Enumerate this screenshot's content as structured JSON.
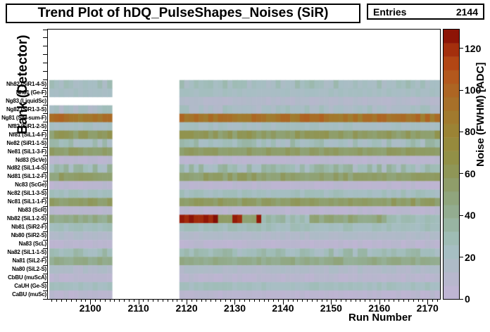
{
  "title_box": {
    "text": "Trend Plot of hDQ_PulseShapes_Noises (SiR)"
  },
  "stats_box": {
    "label": "Entries",
    "value": "2144"
  },
  "chart_data": {
    "type": "heatmap",
    "title": "Trend Plot of hDQ_PulseShapes_Noises (SiR)",
    "entries": 2144,
    "xlabel": "Run Number",
    "ylabel": "Bank (Detector)",
    "zlabel": "Noise (FWHM) [ADC]",
    "x_axis": {
      "min": 2091.2,
      "max": 2172.6,
      "major_ticks": [
        2100,
        2110,
        2120,
        2130,
        2140,
        2150,
        2160,
        2170
      ],
      "minor_step": 1
    },
    "z_axis": {
      "min": 0,
      "max": 129,
      "ticks": [
        0,
        20,
        40,
        60,
        80,
        100,
        120
      ]
    },
    "run_segments": [
      [
        2092,
        2104
      ],
      [
        2119,
        2172
      ]
    ],
    "empty_top_rows": 6,
    "rows_top_to_bottom": [
      {
        "label": "Nh82 (SiR1-4-S)",
        "bank": "Nh82",
        "detector": "SiR1-4-S",
        "noise_adc": 24,
        "jitter": 8
      },
      {
        "label": "Nh81 (Ge-F)",
        "bank": "Nh81",
        "detector": "Ge-F",
        "noise_adc": 22,
        "jitter": 3
      },
      {
        "label": "Ng83 (LiquidSc)",
        "bank": "Ng83",
        "detector": "LiquidSc",
        "noise_adc": 12,
        "jitter": 3,
        "first_data_run": 2119
      },
      {
        "label": "Ng82 (SiR1-3-S)",
        "bank": "Ng82",
        "detector": "SiR1-3-S",
        "noise_adc": 20,
        "jitter": 8
      },
      {
        "label": "Ng81 (SiR-sum-F)",
        "bank": "Ng81",
        "detector": "SiR-sum-F",
        "noise_adc": 93,
        "jitter": 9
      },
      {
        "label": "Nf82 (SiR1-2-S)",
        "bank": "Nf82",
        "detector": "SiR1-2-S",
        "noise_adc": 22,
        "jitter": 4
      },
      {
        "label": "Nf81 (SiL1-4-F)",
        "bank": "Nf81",
        "detector": "SiL1-4-F",
        "noise_adc": 58,
        "jitter": 8
      },
      {
        "label": "Ne82 (SiR1-1-S)",
        "bank": "Ne82",
        "detector": "SiR1-1-S",
        "noise_adc": 26,
        "jitter": 10
      },
      {
        "label": "Ne81 (SiL1-3-F)",
        "bank": "Ne81",
        "detector": "SiL1-3-F",
        "noise_adc": 55,
        "jitter": 5
      },
      {
        "label": "Nd83 (ScVe)",
        "bank": "Nd83",
        "detector": "ScVe",
        "noise_adc": 7,
        "jitter": 3
      },
      {
        "label": "Nd82 (SiL1-4-S)",
        "bank": "Nd82",
        "detector": "SiL1-4-S",
        "noise_adc": 28,
        "jitter": 13
      },
      {
        "label": "Nd81 (SiL1-2-F)",
        "bank": "Nd81",
        "detector": "SiL1-2-F",
        "noise_adc": 54,
        "jitter": 7
      },
      {
        "label": "Nc83 (ScGe)",
        "bank": "Nc83",
        "detector": "ScGe",
        "noise_adc": 7,
        "jitter": 3
      },
      {
        "label": "Nc82 (SiL1-3-S)",
        "bank": "Nc82",
        "detector": "SiL1-3-S",
        "noise_adc": 25,
        "jitter": 5
      },
      {
        "label": "Nc81 (SiL1-1-F)",
        "bank": "Nc81",
        "detector": "SiL1-1-F",
        "noise_adc": 56,
        "jitter": 6
      },
      {
        "label": "Nb83 (ScR)",
        "bank": "Nb83",
        "detector": "ScR",
        "noise_adc": 7,
        "jitter": 3
      },
      {
        "label": "Nb82 (SiL1-2-S)",
        "bank": "Nb82",
        "detector": "SiL1-2-S",
        "profile": [
          {
            "from": 2092,
            "to": 2104,
            "value": 44,
            "jitter": 5
          },
          {
            "from": 2119,
            "to": 2126,
            "value": 124,
            "jitter": 4
          },
          {
            "from": 2127,
            "to": 2129,
            "value": 52,
            "jitter": 5
          },
          {
            "from": 2130,
            "to": 2131,
            "value": 122,
            "jitter": 3
          },
          {
            "from": 2132,
            "to": 2134,
            "value": 52,
            "jitter": 5
          },
          {
            "from": 2135,
            "to": 2135,
            "value": 122,
            "jitter": 3
          },
          {
            "from": 2136,
            "to": 2145,
            "value": 30,
            "jitter": 8
          },
          {
            "from": 2146,
            "to": 2161,
            "value": 48,
            "jitter": 6
          },
          {
            "from": 2162,
            "to": 2172,
            "value": 28,
            "jitter": 4
          }
        ]
      },
      {
        "label": "Nb81 (SiR2-F)",
        "bank": "Nb81",
        "detector": "SiR2-F",
        "noise_adc": 26,
        "jitter": 4
      },
      {
        "label": "Nb80 (SiR2-S)",
        "bank": "Nb80",
        "detector": "SiR2-S",
        "noise_adc": 14,
        "jitter": 3
      },
      {
        "label": "Na83 (ScL)",
        "bank": "Na83",
        "detector": "ScL",
        "noise_adc": 7,
        "jitter": 3
      },
      {
        "label": "Na82 (SiL1-1-S)",
        "bank": "Na82",
        "detector": "SiL1-1-S",
        "noise_adc": 27,
        "jitter": 9
      },
      {
        "label": "Na81 (SiL2-F)",
        "bank": "Na81",
        "detector": "SiL2-F",
        "noise_adc": 44,
        "jitter": 5
      },
      {
        "label": "Na80 (SiL2-S)",
        "bank": "Na80",
        "detector": "SiL2-S",
        "noise_adc": 14,
        "jitter": 4
      },
      {
        "label": "CbBU (muScA)",
        "bank": "CbBU",
        "detector": "muScA",
        "noise_adc": 8,
        "jitter": 3
      },
      {
        "label": "CaUH (Ge-S)",
        "bank": "CaUH",
        "detector": "Ge-S",
        "noise_adc": 24,
        "jitter": 4
      },
      {
        "label": "CaBU (muSc)",
        "bank": "CaBU",
        "detector": "muSc",
        "noise_adc": 7,
        "jitter": 3
      }
    ],
    "palette_stops": [
      [
        0,
        "#c3b4d7"
      ],
      [
        8,
        "#b9b6ce"
      ],
      [
        16,
        "#aebbc7"
      ],
      [
        22,
        "#a7bec4"
      ],
      [
        28,
        "#a0bdb8"
      ],
      [
        36,
        "#97b3a0"
      ],
      [
        44,
        "#92aa8a"
      ],
      [
        52,
        "#8fa172"
      ],
      [
        60,
        "#8f975a"
      ],
      [
        68,
        "#929046"
      ],
      [
        76,
        "#97883a"
      ],
      [
        84,
        "#9e7f31"
      ],
      [
        92,
        "#a5732a"
      ],
      [
        100,
        "#ad6523"
      ],
      [
        108,
        "#b4551b"
      ],
      [
        114,
        "#b14312"
      ],
      [
        120,
        "#a22c0c"
      ],
      [
        125,
        "#901607"
      ],
      [
        129,
        "#7e0a04"
      ]
    ]
  }
}
